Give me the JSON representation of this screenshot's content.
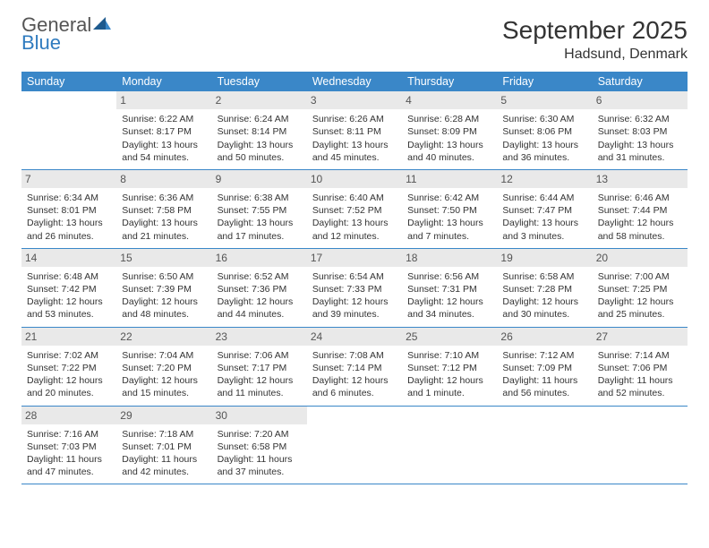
{
  "brand": {
    "name1": "General",
    "name2": "Blue"
  },
  "title": "September 2025",
  "location": "Hadsund, Denmark",
  "calendar": {
    "type": "table",
    "day_headers": [
      "Sunday",
      "Monday",
      "Tuesday",
      "Wednesday",
      "Thursday",
      "Friday",
      "Saturday"
    ],
    "header_bg": "#3a87c8",
    "header_text_color": "#ffffff",
    "daynum_bg": "#e9e9e9",
    "border_color": "#3a87c8",
    "body_fontsize": 10.5,
    "weeks": [
      [
        {
          "n": "",
          "sunrise": "",
          "sunset": "",
          "daylight": ""
        },
        {
          "n": "1",
          "sunrise": "Sunrise: 6:22 AM",
          "sunset": "Sunset: 8:17 PM",
          "daylight": "Daylight: 13 hours and 54 minutes."
        },
        {
          "n": "2",
          "sunrise": "Sunrise: 6:24 AM",
          "sunset": "Sunset: 8:14 PM",
          "daylight": "Daylight: 13 hours and 50 minutes."
        },
        {
          "n": "3",
          "sunrise": "Sunrise: 6:26 AM",
          "sunset": "Sunset: 8:11 PM",
          "daylight": "Daylight: 13 hours and 45 minutes."
        },
        {
          "n": "4",
          "sunrise": "Sunrise: 6:28 AM",
          "sunset": "Sunset: 8:09 PM",
          "daylight": "Daylight: 13 hours and 40 minutes."
        },
        {
          "n": "5",
          "sunrise": "Sunrise: 6:30 AM",
          "sunset": "Sunset: 8:06 PM",
          "daylight": "Daylight: 13 hours and 36 minutes."
        },
        {
          "n": "6",
          "sunrise": "Sunrise: 6:32 AM",
          "sunset": "Sunset: 8:03 PM",
          "daylight": "Daylight: 13 hours and 31 minutes."
        }
      ],
      [
        {
          "n": "7",
          "sunrise": "Sunrise: 6:34 AM",
          "sunset": "Sunset: 8:01 PM",
          "daylight": "Daylight: 13 hours and 26 minutes."
        },
        {
          "n": "8",
          "sunrise": "Sunrise: 6:36 AM",
          "sunset": "Sunset: 7:58 PM",
          "daylight": "Daylight: 13 hours and 21 minutes."
        },
        {
          "n": "9",
          "sunrise": "Sunrise: 6:38 AM",
          "sunset": "Sunset: 7:55 PM",
          "daylight": "Daylight: 13 hours and 17 minutes."
        },
        {
          "n": "10",
          "sunrise": "Sunrise: 6:40 AM",
          "sunset": "Sunset: 7:52 PM",
          "daylight": "Daylight: 13 hours and 12 minutes."
        },
        {
          "n": "11",
          "sunrise": "Sunrise: 6:42 AM",
          "sunset": "Sunset: 7:50 PM",
          "daylight": "Daylight: 13 hours and 7 minutes."
        },
        {
          "n": "12",
          "sunrise": "Sunrise: 6:44 AM",
          "sunset": "Sunset: 7:47 PM",
          "daylight": "Daylight: 13 hours and 3 minutes."
        },
        {
          "n": "13",
          "sunrise": "Sunrise: 6:46 AM",
          "sunset": "Sunset: 7:44 PM",
          "daylight": "Daylight: 12 hours and 58 minutes."
        }
      ],
      [
        {
          "n": "14",
          "sunrise": "Sunrise: 6:48 AM",
          "sunset": "Sunset: 7:42 PM",
          "daylight": "Daylight: 12 hours and 53 minutes."
        },
        {
          "n": "15",
          "sunrise": "Sunrise: 6:50 AM",
          "sunset": "Sunset: 7:39 PM",
          "daylight": "Daylight: 12 hours and 48 minutes."
        },
        {
          "n": "16",
          "sunrise": "Sunrise: 6:52 AM",
          "sunset": "Sunset: 7:36 PM",
          "daylight": "Daylight: 12 hours and 44 minutes."
        },
        {
          "n": "17",
          "sunrise": "Sunrise: 6:54 AM",
          "sunset": "Sunset: 7:33 PM",
          "daylight": "Daylight: 12 hours and 39 minutes."
        },
        {
          "n": "18",
          "sunrise": "Sunrise: 6:56 AM",
          "sunset": "Sunset: 7:31 PM",
          "daylight": "Daylight: 12 hours and 34 minutes."
        },
        {
          "n": "19",
          "sunrise": "Sunrise: 6:58 AM",
          "sunset": "Sunset: 7:28 PM",
          "daylight": "Daylight: 12 hours and 30 minutes."
        },
        {
          "n": "20",
          "sunrise": "Sunrise: 7:00 AM",
          "sunset": "Sunset: 7:25 PM",
          "daylight": "Daylight: 12 hours and 25 minutes."
        }
      ],
      [
        {
          "n": "21",
          "sunrise": "Sunrise: 7:02 AM",
          "sunset": "Sunset: 7:22 PM",
          "daylight": "Daylight: 12 hours and 20 minutes."
        },
        {
          "n": "22",
          "sunrise": "Sunrise: 7:04 AM",
          "sunset": "Sunset: 7:20 PM",
          "daylight": "Daylight: 12 hours and 15 minutes."
        },
        {
          "n": "23",
          "sunrise": "Sunrise: 7:06 AM",
          "sunset": "Sunset: 7:17 PM",
          "daylight": "Daylight: 12 hours and 11 minutes."
        },
        {
          "n": "24",
          "sunrise": "Sunrise: 7:08 AM",
          "sunset": "Sunset: 7:14 PM",
          "daylight": "Daylight: 12 hours and 6 minutes."
        },
        {
          "n": "25",
          "sunrise": "Sunrise: 7:10 AM",
          "sunset": "Sunset: 7:12 PM",
          "daylight": "Daylight: 12 hours and 1 minute."
        },
        {
          "n": "26",
          "sunrise": "Sunrise: 7:12 AM",
          "sunset": "Sunset: 7:09 PM",
          "daylight": "Daylight: 11 hours and 56 minutes."
        },
        {
          "n": "27",
          "sunrise": "Sunrise: 7:14 AM",
          "sunset": "Sunset: 7:06 PM",
          "daylight": "Daylight: 11 hours and 52 minutes."
        }
      ],
      [
        {
          "n": "28",
          "sunrise": "Sunrise: 7:16 AM",
          "sunset": "Sunset: 7:03 PM",
          "daylight": "Daylight: 11 hours and 47 minutes."
        },
        {
          "n": "29",
          "sunrise": "Sunrise: 7:18 AM",
          "sunset": "Sunset: 7:01 PM",
          "daylight": "Daylight: 11 hours and 42 minutes."
        },
        {
          "n": "30",
          "sunrise": "Sunrise: 7:20 AM",
          "sunset": "Sunset: 6:58 PM",
          "daylight": "Daylight: 11 hours and 37 minutes."
        },
        {
          "n": "",
          "sunrise": "",
          "sunset": "",
          "daylight": ""
        },
        {
          "n": "",
          "sunrise": "",
          "sunset": "",
          "daylight": ""
        },
        {
          "n": "",
          "sunrise": "",
          "sunset": "",
          "daylight": ""
        },
        {
          "n": "",
          "sunrise": "",
          "sunset": "",
          "daylight": ""
        }
      ]
    ]
  }
}
